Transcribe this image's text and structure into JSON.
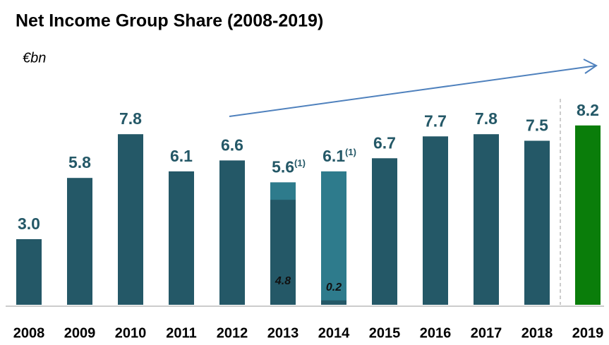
{
  "chart_data": {
    "type": "bar",
    "title": "Net Income Group Share (2008-2019)",
    "unit_label": "€bn",
    "categories": [
      "2008",
      "2009",
      "2010",
      "2011",
      "2012",
      "2013",
      "2014",
      "2015",
      "2016",
      "2017",
      "2018",
      "2019"
    ],
    "values": [
      3.0,
      5.8,
      7.8,
      6.1,
      6.6,
      5.6,
      6.1,
      6.7,
      7.7,
      7.8,
      7.5,
      8.2
    ],
    "value_labels": [
      "3.0",
      "5.8",
      "7.8",
      "6.1",
      "6.6",
      "5.6",
      "6.1",
      "6.7",
      "7.7",
      "7.8",
      "7.5",
      "8.2"
    ],
    "notes": [
      null,
      null,
      null,
      null,
      null,
      "(1)",
      "(1)",
      null,
      null,
      null,
      null,
      null
    ],
    "inner_values": [
      null,
      null,
      null,
      null,
      null,
      4.8,
      0.2,
      null,
      null,
      null,
      null,
      null
    ],
    "inner_labels": [
      null,
      null,
      null,
      null,
      null,
      "4.8",
      "0.2",
      null,
      null,
      null,
      null,
      null
    ],
    "colors": [
      "#245867",
      "#245867",
      "#245867",
      "#245867",
      "#245867",
      "#2e7b8c",
      "#2e7b8c",
      "#245867",
      "#245867",
      "#245867",
      "#245867",
      "#0a7d0a"
    ],
    "inner_color": "#245867"
  }
}
